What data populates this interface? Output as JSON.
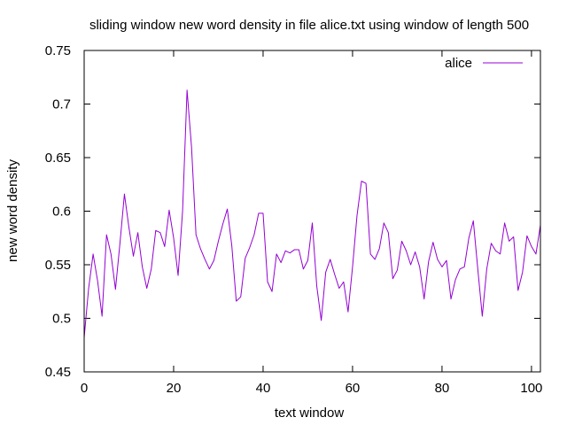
{
  "chart_data": {
    "type": "line",
    "title": "sliding window new word density in file alice.txt using window of length 500",
    "xlabel": "text window",
    "ylabel": "new word density",
    "xlim": [
      0,
      102
    ],
    "ylim": [
      0.45,
      0.75
    ],
    "xticks": [
      0,
      20,
      40,
      60,
      80,
      100
    ],
    "yticks": [
      0.45,
      0.5,
      0.55,
      0.6,
      0.65,
      0.7,
      0.75
    ],
    "ytick_labels": [
      "0.45",
      "0.5",
      "0.55",
      "0.6",
      "0.65",
      "0.7",
      "0.75"
    ],
    "grid": false,
    "legend_position": "top-right",
    "series": [
      {
        "name": "alice",
        "color": "#9400d3",
        "x": [
          0,
          1,
          2,
          3,
          4,
          5,
          6,
          7,
          8,
          9,
          10,
          11,
          12,
          13,
          14,
          15,
          16,
          17,
          18,
          19,
          20,
          21,
          22,
          23,
          24,
          25,
          26,
          27,
          28,
          29,
          30,
          31,
          32,
          33,
          34,
          35,
          36,
          37,
          38,
          39,
          40,
          41,
          42,
          43,
          44,
          45,
          46,
          47,
          48,
          49,
          50,
          51,
          52,
          53,
          54,
          55,
          56,
          57,
          58,
          59,
          60,
          61,
          62,
          63,
          64,
          65,
          66,
          67,
          68,
          69,
          70,
          71,
          72,
          73,
          74,
          75,
          76,
          77,
          78,
          79,
          80,
          81,
          82,
          83,
          84,
          85,
          86,
          87,
          88,
          89,
          90,
          91,
          92,
          93,
          94,
          95,
          96,
          97,
          98,
          99,
          100,
          101,
          102
        ],
        "values": [
          0.482,
          0.528,
          0.56,
          0.535,
          0.502,
          0.578,
          0.56,
          0.527,
          0.57,
          0.616,
          0.585,
          0.558,
          0.58,
          0.548,
          0.528,
          0.546,
          0.582,
          0.58,
          0.567,
          0.601,
          0.575,
          0.54,
          0.6,
          0.713,
          0.66,
          0.578,
          0.565,
          0.555,
          0.546,
          0.554,
          0.572,
          0.588,
          0.602,
          0.568,
          0.516,
          0.52,
          0.556,
          0.566,
          0.578,
          0.598,
          0.598,
          0.534,
          0.525,
          0.56,
          0.552,
          0.563,
          0.561,
          0.564,
          0.564,
          0.546,
          0.554,
          0.589,
          0.53,
          0.498,
          0.543,
          0.555,
          0.541,
          0.528,
          0.534,
          0.506,
          0.548,
          0.596,
          0.628,
          0.626,
          0.56,
          0.555,
          0.565,
          0.589,
          0.58,
          0.537,
          0.545,
          0.572,
          0.563,
          0.55,
          0.562,
          0.548,
          0.518,
          0.553,
          0.571,
          0.555,
          0.548,
          0.554,
          0.518,
          0.536,
          0.546,
          0.548,
          0.575,
          0.591,
          0.546,
          0.502,
          0.546,
          0.57,
          0.563,
          0.56,
          0.589,
          0.572,
          0.576,
          0.526,
          0.543,
          0.577,
          0.567,
          0.56,
          0.587
        ]
      }
    ]
  }
}
